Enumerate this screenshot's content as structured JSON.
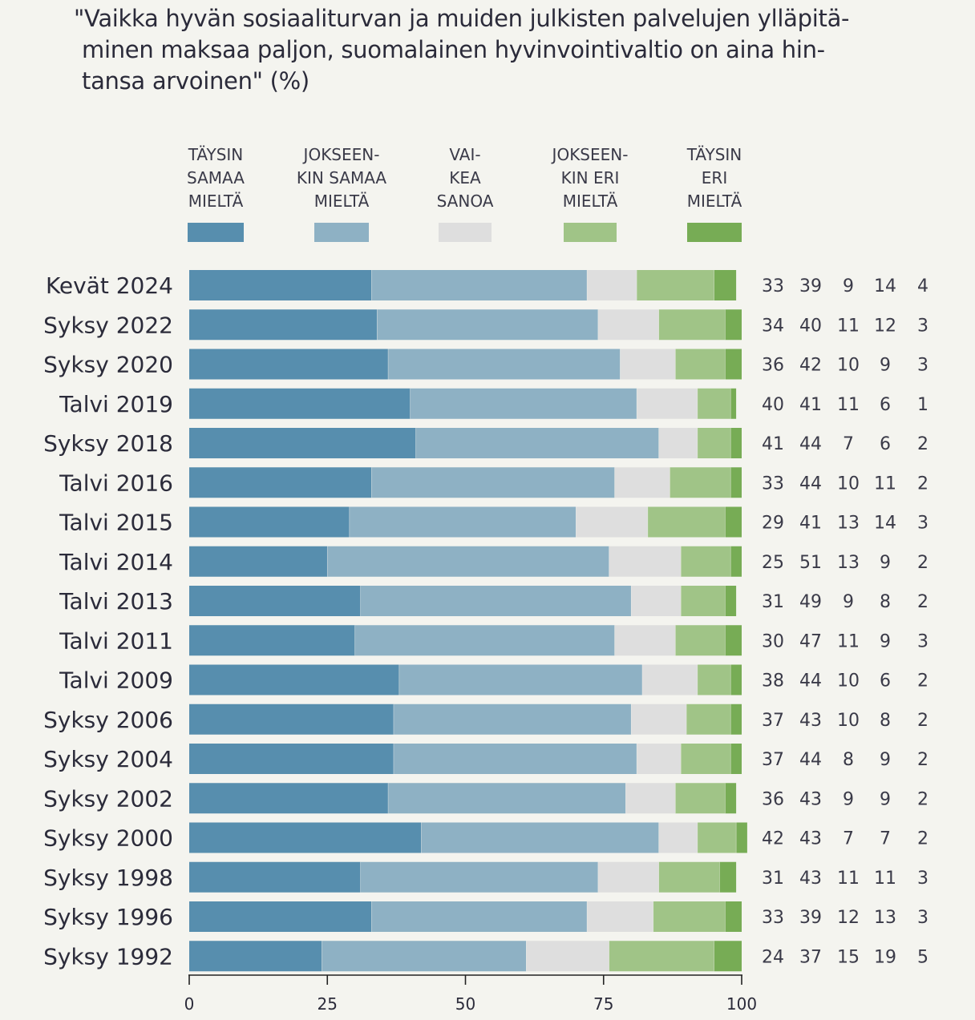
{
  "chart_data": {
    "type": "bar",
    "orientation": "horizontal",
    "stacked": true,
    "title_lines": [
      "\"Vaikka hyvän sosiaaliturvan ja muiden julkisten palvelujen ylläpitä-",
      "minen maksaa paljon, suomalainen hyvinvointivaltio on aina hin-",
      "tansa arvoinen\" (%)"
    ],
    "xlabel": "",
    "ylabel": "",
    "xlim": [
      0,
      100
    ],
    "x_ticks": [
      0,
      25,
      50,
      75,
      100
    ],
    "grid": false,
    "legend_position": "top",
    "categories": [
      "Kevät 2024",
      "Syksy 2022",
      "Syksy 2020",
      "Talvi 2019",
      "Syksy 2018",
      "Talvi 2016",
      "Talvi 2015",
      "Talvi 2014",
      "Talvi 2013",
      "Talvi 2011",
      "Talvi 2009",
      "Syksy 2006",
      "Syksy 2004",
      "Syksy 2002",
      "Syksy 2000",
      "Syksy 1998",
      "Syksy 1996",
      "Syksy 1992"
    ],
    "series": [
      {
        "name": "TÄYSIN SAMAA MIELTÄ",
        "legend_lines": [
          "TÄYSIN",
          "SAMAA",
          "MIELTÄ"
        ],
        "color": "#578eae",
        "values": [
          33,
          34,
          36,
          40,
          41,
          33,
          29,
          25,
          31,
          30,
          38,
          37,
          37,
          36,
          42,
          31,
          33,
          24
        ]
      },
      {
        "name": "JOKSEENKIN SAMAA MIELTÄ",
        "legend_lines": [
          "JOKSEEN-",
          "KIN SAMAA",
          "MIELTÄ"
        ],
        "color": "#8eb1c4",
        "values": [
          39,
          40,
          42,
          41,
          44,
          44,
          41,
          51,
          49,
          47,
          44,
          43,
          44,
          43,
          43,
          43,
          39,
          37
        ]
      },
      {
        "name": "VAIKEA SANOA",
        "legend_lines": [
          "VAI-",
          "KEA",
          "SANOA"
        ],
        "color": "#dedede",
        "values": [
          9,
          11,
          10,
          11,
          7,
          10,
          13,
          13,
          9,
          11,
          10,
          10,
          8,
          9,
          7,
          11,
          12,
          15
        ]
      },
      {
        "name": "JOKSEENKIN ERI MIELTÄ",
        "legend_lines": [
          "JOKSEEN-",
          "KIN ERI",
          "MIELTÄ"
        ],
        "color": "#a0c487",
        "values": [
          14,
          12,
          9,
          6,
          6,
          11,
          14,
          9,
          8,
          9,
          6,
          8,
          9,
          9,
          7,
          11,
          13,
          19
        ]
      },
      {
        "name": "TÄYSIN ERI MIELTÄ",
        "legend_lines": [
          "TÄYSIN",
          "ERI",
          "MIELTÄ"
        ],
        "color": "#77ac55",
        "values": [
          4,
          3,
          3,
          1,
          2,
          2,
          3,
          2,
          2,
          3,
          2,
          2,
          2,
          2,
          2,
          3,
          3,
          5
        ]
      }
    ]
  }
}
